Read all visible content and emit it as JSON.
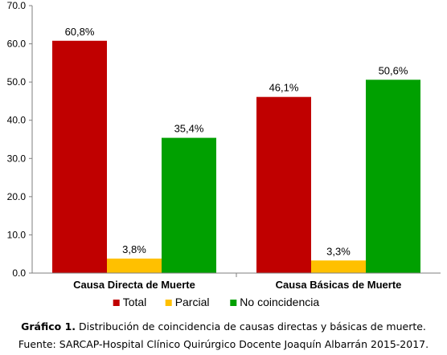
{
  "chart_data": {
    "type": "bar",
    "categories": [
      "Causa Directa de Muerte",
      "Causa Básicas de Muerte"
    ],
    "series": [
      {
        "name": "Total",
        "values": [
          60.8,
          46.1
        ],
        "labels": [
          "60,8%",
          "46,1%"
        ],
        "color": "#c00000"
      },
      {
        "name": "Parcial",
        "values": [
          3.8,
          3.3
        ],
        "labels": [
          "3,8%",
          "3,3%"
        ],
        "color": "#ffc000"
      },
      {
        "name": "No coincidencia",
        "values": [
          35.4,
          50.6
        ],
        "labels": [
          "35,4%",
          "50,6%"
        ],
        "color": "#00a000"
      }
    ],
    "ylim": [
      0,
      70
    ],
    "yticks": [
      "0.0",
      "10.0",
      "20.0",
      "30.0",
      "40.0",
      "50.0",
      "60.0",
      "70.0"
    ],
    "grid": false,
    "legend_position": "bottom"
  },
  "caption": {
    "label": "Gráfico 1.",
    "text": " Distribución de coincidencia de causas directas y básicas de muerte.",
    "source": "Fuente: SARCAP-Hospital Clínico Quirúrgico Docente Joaquín Albarrán 2015-2017."
  }
}
